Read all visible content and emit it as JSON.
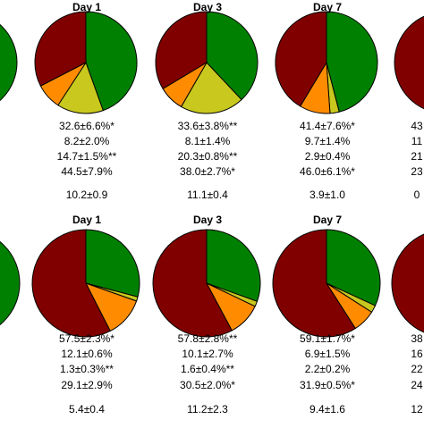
{
  "colors": {
    "dark_red": "#800000",
    "green": "#008000",
    "orange": "#ff8c00",
    "yellow_green": "#c8c81e",
    "outline": "#000000"
  },
  "chart_data": [
    {
      "type": "pie",
      "panel": "top-row",
      "column": "left-edge",
      "title": "",
      "slices": [
        {
          "label": "green",
          "value": 100
        }
      ],
      "stats": [
        "%",
        "*",
        "%",
        "%"
      ],
      "footer": ""
    },
    {
      "type": "pie",
      "panel": "top-row",
      "column": "col-2",
      "title": "Day 1",
      "slices": [
        {
          "label": "green",
          "value": 44.5
        },
        {
          "label": "yellow_green",
          "value": 14.7
        },
        {
          "label": "orange",
          "value": 8.2
        },
        {
          "label": "dark_red",
          "value": 32.6
        }
      ],
      "stats": [
        "32.6±6.6%*",
        "8.2±2.0%",
        "14.7±1.5%**",
        "44.5±7.9%"
      ],
      "footer": "10.2±0.9"
    },
    {
      "type": "pie",
      "panel": "top-row",
      "column": "col-3",
      "title": "Day 3",
      "slices": [
        {
          "label": "green",
          "value": 38.0
        },
        {
          "label": "yellow_green",
          "value": 20.3
        },
        {
          "label": "orange",
          "value": 8.1
        },
        {
          "label": "dark_red",
          "value": 33.6
        }
      ],
      "stats": [
        "33.6±3.8%**",
        "8.1±1.4%",
        "20.3±0.8%**",
        "38.0±2.7%*"
      ],
      "footer": "11.1±0.4"
    },
    {
      "type": "pie",
      "panel": "top-row",
      "column": "col-4",
      "title": "Day 7",
      "slices": [
        {
          "label": "green",
          "value": 46.0
        },
        {
          "label": "yellow_green",
          "value": 2.9
        },
        {
          "label": "orange",
          "value": 9.7
        },
        {
          "label": "dark_red",
          "value": 41.4
        }
      ],
      "stats": [
        "41.4±7.6%*",
        "9.7±1.4%",
        "2.9±0.4%",
        "46.0±6.1%*"
      ],
      "footer": "3.9±1.0"
    },
    {
      "type": "pie",
      "panel": "top-row",
      "column": "right-edge",
      "title": "",
      "slices": [
        {
          "label": "dark_red",
          "value": 100
        }
      ],
      "stats": [
        "43",
        "11",
        "21",
        "23"
      ],
      "footer": "0"
    },
    {
      "type": "pie",
      "panel": "bottom-row",
      "column": "left-edge",
      "title": "",
      "slices": [
        {
          "label": "green",
          "value": 100
        }
      ],
      "stats": [
        "%",
        "*",
        "%",
        "%"
      ],
      "footer": ""
    },
    {
      "type": "pie",
      "panel": "bottom-row",
      "column": "col-2",
      "title": "Day 1",
      "slices": [
        {
          "label": "green",
          "value": 29.1
        },
        {
          "label": "yellow_green",
          "value": 1.3
        },
        {
          "label": "orange",
          "value": 12.1
        },
        {
          "label": "dark_red",
          "value": 57.5
        }
      ],
      "stats": [
        "57.5±2.3%*",
        "12.1±0.6%",
        "1.3±0.3%**",
        "29.1±2.9%"
      ],
      "footer": "5.4±0.4"
    },
    {
      "type": "pie",
      "panel": "bottom-row",
      "column": "col-3",
      "title": "Day 3",
      "slices": [
        {
          "label": "green",
          "value": 30.5
        },
        {
          "label": "yellow_green",
          "value": 1.6
        },
        {
          "label": "orange",
          "value": 10.1
        },
        {
          "label": "dark_red",
          "value": 57.8
        }
      ],
      "stats": [
        "57.8±2.8%**",
        "10.1±2.7%",
        "1.6±0.4%**",
        "30.5±2.0%*"
      ],
      "footer": "11.2±2.3"
    },
    {
      "type": "pie",
      "panel": "bottom-row",
      "column": "col-4",
      "title": "Day 7",
      "slices": [
        {
          "label": "green",
          "value": 31.9
        },
        {
          "label": "yellow_green",
          "value": 2.2
        },
        {
          "label": "orange",
          "value": 6.9
        },
        {
          "label": "dark_red",
          "value": 59.1
        }
      ],
      "stats": [
        "59.1±1.7%*",
        "6.9±1.5%",
        "2.2±0.2%",
        "31.9±0.5%*"
      ],
      "footer": "9.4±1.6"
    },
    {
      "type": "pie",
      "panel": "bottom-row",
      "column": "right-edge",
      "title": "",
      "slices": [
        {
          "label": "green",
          "value": 20
        },
        {
          "label": "dark_red",
          "value": 80
        }
      ],
      "stats": [
        "38",
        "16",
        "22",
        "24"
      ],
      "footer": "12"
    }
  ]
}
